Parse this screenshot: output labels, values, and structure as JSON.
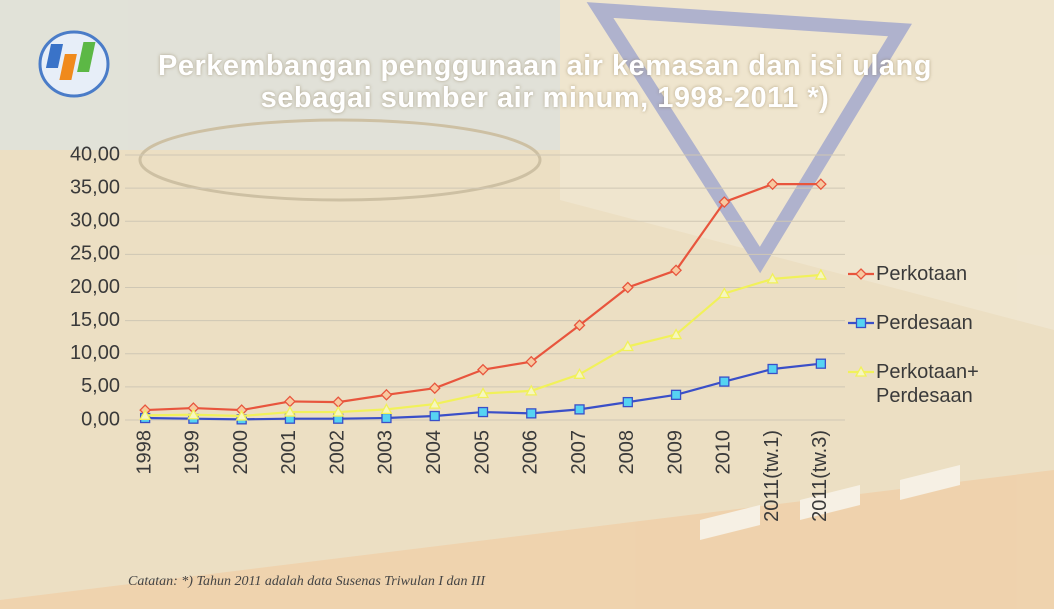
{
  "chart_data": {
    "type": "line",
    "title": "Perkembangan penggunaan air kemasan dan isi ulang sebagai sumber air minum, 1998-2011 *)",
    "note": "Catatan: *) Tahun 2011 adalah data Susenas Triwulan I dan III",
    "categories": [
      "1998",
      "1999",
      "2000",
      "2001",
      "2002",
      "2003",
      "2004",
      "2005",
      "2006",
      "2007",
      "2008",
      "2009",
      "2010",
      "2011(tw.1)",
      "2011(tw.3)"
    ],
    "series": [
      {
        "name": "Perkotaan",
        "color": "#e8553d",
        "marker": "diamond",
        "marker_fill": "#f7c9a0",
        "values": [
          1.5,
          1.8,
          1.5,
          2.8,
          2.7,
          3.8,
          4.8,
          7.6,
          8.8,
          14.3,
          20.0,
          22.6,
          32.9,
          35.6,
          35.6
        ]
      },
      {
        "name": "Perdesaan",
        "color": "#3a4fc8",
        "marker": "square",
        "marker_fill": "#56d3f2",
        "values": [
          0.3,
          0.2,
          0.1,
          0.2,
          0.2,
          0.3,
          0.6,
          1.2,
          1.0,
          1.6,
          2.7,
          3.8,
          5.8,
          7.7,
          8.5
        ]
      },
      {
        "name": "Perkotaan+ Perdesaan",
        "color": "#f1f15a",
        "marker": "triangle",
        "marker_fill": "#f6f6c0",
        "values": [
          0.7,
          0.8,
          0.6,
          1.2,
          1.2,
          1.6,
          2.4,
          4.0,
          4.4,
          6.9,
          11.1,
          12.9,
          19.1,
          21.3,
          21.9
        ]
      }
    ],
    "ylim": [
      0,
      40
    ],
    "yticks": [
      {
        "value": 0,
        "label": "0,00"
      },
      {
        "value": 5,
        "label": "5,00"
      },
      {
        "value": 10,
        "label": "10,00"
      },
      {
        "value": 15,
        "label": "15,00"
      },
      {
        "value": 20,
        "label": "20,00"
      },
      {
        "value": 25,
        "label": "25,00"
      },
      {
        "value": 30,
        "label": "30,00"
      },
      {
        "value": 35,
        "label": "35,00"
      },
      {
        "value": 40,
        "label": "40,00"
      }
    ],
    "grid": true,
    "legend": "right"
  }
}
